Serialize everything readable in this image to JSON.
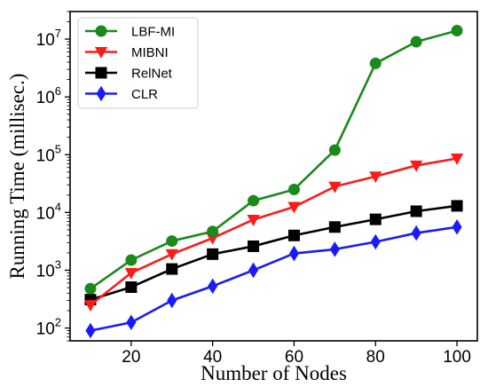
{
  "chart_data": {
    "type": "line",
    "xlabel": "Number of Nodes",
    "ylabel": "Running Time (millisec.)",
    "xlim": [
      5,
      105
    ],
    "ylim": [
      60,
      30000000
    ],
    "yscale": "log",
    "x": [
      10,
      20,
      30,
      40,
      50,
      60,
      70,
      80,
      90,
      100
    ],
    "xticks": [
      "20",
      "40",
      "60",
      "80",
      "100"
    ],
    "xtick_values": [
      20,
      40,
      60,
      80,
      100
    ],
    "ytick_values": [
      100,
      1000,
      10000,
      100000,
      1000000,
      10000000
    ],
    "ytick_exponents": [
      "2",
      "3",
      "4",
      "5",
      "6",
      "7"
    ],
    "ytick_base": "10",
    "grid": false,
    "legend_position": "top-left",
    "series": [
      {
        "name": "LBF-MI",
        "color": "#1a8a1a",
        "marker": "circle",
        "values": [
          480,
          1500,
          3200,
          4700,
          16000,
          25000,
          120000,
          3800000,
          9000000,
          14000000
        ]
      },
      {
        "name": "MIBNI",
        "color": "#ff1a1a",
        "marker": "triangle-down",
        "values": [
          250,
          900,
          1900,
          3600,
          7500,
          12500,
          28000,
          42000,
          65000,
          86000
        ]
      },
      {
        "name": "RelNet",
        "color": "#000000",
        "marker": "square",
        "values": [
          310,
          510,
          1050,
          1900,
          2600,
          4000,
          5600,
          7600,
          10500,
          13000
        ]
      },
      {
        "name": "CLR",
        "color": "#1a1aff",
        "marker": "diamond",
        "values": [
          90,
          125,
          300,
          530,
          1000,
          1950,
          2300,
          3100,
          4400,
          5600
        ]
      }
    ]
  }
}
